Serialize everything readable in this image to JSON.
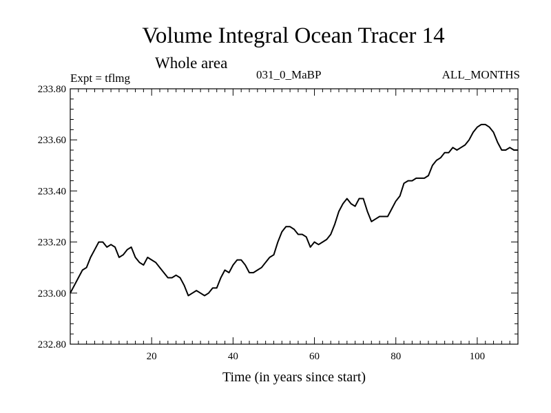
{
  "chart_data": {
    "type": "line",
    "title": "Volume Integral Ocean Tracer 14",
    "subtitle": "Whole area",
    "header_left": "Expt = tflmg",
    "header_center": "031_0_MaBP",
    "header_right": "ALL_MONTHS",
    "xlabel": "Time (in years since start)",
    "ylabel": "",
    "xlim": [
      0,
      110
    ],
    "ylim": [
      232.8,
      233.8
    ],
    "xticks": [
      20,
      40,
      60,
      80,
      100
    ],
    "yticks": [
      232.8,
      233.0,
      233.2,
      233.4,
      233.6,
      233.8
    ],
    "ytick_labels": [
      "232.80",
      "233.00",
      "233.20",
      "233.40",
      "233.60",
      "233.80"
    ],
    "grid": false,
    "series": [
      {
        "name": "Volume Integral Ocean Tracer 14",
        "x": [
          0,
          1,
          2,
          3,
          4,
          5,
          6,
          7,
          8,
          9,
          10,
          11,
          12,
          13,
          14,
          15,
          16,
          17,
          18,
          19,
          20,
          21,
          22,
          23,
          24,
          25,
          26,
          27,
          28,
          29,
          30,
          31,
          32,
          33,
          34,
          35,
          36,
          37,
          38,
          39,
          40,
          41,
          42,
          43,
          44,
          45,
          46,
          47,
          48,
          49,
          50,
          51,
          52,
          53,
          54,
          55,
          56,
          57,
          58,
          59,
          60,
          61,
          62,
          63,
          64,
          65,
          66,
          67,
          68,
          69,
          70,
          71,
          72,
          73,
          74,
          75,
          76,
          77,
          78,
          79,
          80,
          81,
          82,
          83,
          84,
          85,
          86,
          87,
          88,
          89,
          90,
          91,
          92,
          93,
          94,
          95,
          96,
          97,
          98,
          99,
          100,
          101,
          102,
          103,
          104,
          105,
          106,
          107,
          108,
          109,
          110
        ],
        "y": [
          233.0,
          233.03,
          233.06,
          233.09,
          233.1,
          233.14,
          233.17,
          233.2,
          233.2,
          233.18,
          233.19,
          233.18,
          233.14,
          233.15,
          233.17,
          233.18,
          233.14,
          233.12,
          233.11,
          233.14,
          233.13,
          233.12,
          233.1,
          233.08,
          233.06,
          233.06,
          233.07,
          233.06,
          233.03,
          232.99,
          233.0,
          233.01,
          233.0,
          232.99,
          233.0,
          233.02,
          233.02,
          233.06,
          233.09,
          233.08,
          233.11,
          233.13,
          233.13,
          233.11,
          233.08,
          233.08,
          233.09,
          233.1,
          233.12,
          233.14,
          233.15,
          233.2,
          233.24,
          233.26,
          233.26,
          233.25,
          233.23,
          233.23,
          233.22,
          233.18,
          233.2,
          233.19,
          233.2,
          233.21,
          233.23,
          233.27,
          233.32,
          233.35,
          233.37,
          233.35,
          233.34,
          233.37,
          233.37,
          233.32,
          233.28,
          233.29,
          233.3,
          233.3,
          233.3,
          233.33,
          233.36,
          233.38,
          233.43,
          233.44,
          233.44,
          233.45,
          233.45,
          233.45,
          233.46,
          233.5,
          233.52,
          233.53,
          233.55,
          233.55,
          233.57,
          233.56,
          233.57,
          233.58,
          233.6,
          233.63,
          233.65,
          233.66,
          233.66,
          233.65,
          233.63,
          233.59,
          233.56,
          233.56,
          233.57,
          233.56,
          233.56
        ]
      }
    ]
  }
}
